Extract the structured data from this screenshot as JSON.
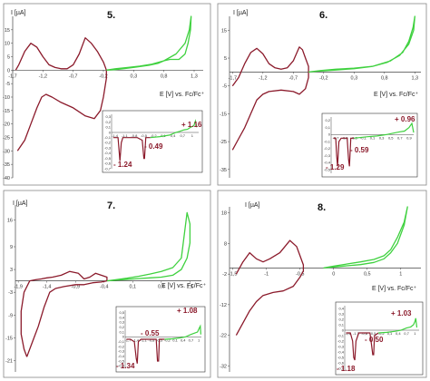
{
  "colors": {
    "red": "#8b1a2b",
    "green": "#3fd13f",
    "axis": "#444444",
    "border": "#888888"
  },
  "chart_data": [
    {
      "type": "line",
      "panel_label": "5.",
      "ylabel": "I [µA]",
      "xlabel": "E [V] vs. Fc/Fc⁺",
      "xlim": [
        -1.7,
        1.45
      ],
      "ylim": [
        -40,
        20
      ],
      "xticks": [
        -1.7,
        -1.2,
        -0.7,
        -0.2,
        0.3,
        0.8,
        1.3
      ],
      "xtick_labels": [
        "-1,7",
        "-1,2",
        "-0,7",
        "-0,2",
        "0,3",
        "0,8",
        "1,3"
      ],
      "yticks": [
        15,
        10,
        5,
        0,
        -5,
        -10,
        -15,
        -20,
        -25,
        -30,
        -35,
        -40
      ],
      "ytick_labels": [
        "15",
        "10",
        "5",
        "0",
        "-5",
        "-10",
        "-15",
        "-20",
        "-25",
        "-30",
        "-35",
        "-40"
      ],
      "series": [
        {
          "color": "red",
          "x": [
            -1.62,
            -1.5,
            -1.4,
            -1.3,
            -1.22,
            -1.15,
            -1.1,
            -1.05,
            -0.9,
            -0.7,
            -0.5,
            -0.35,
            -0.25,
            -0.2,
            -0.15,
            -0.15,
            -0.2,
            -0.3,
            -0.4,
            -0.5,
            -0.6,
            -0.7,
            -0.8,
            -0.9,
            -1.0,
            -1.1,
            -1.2,
            -1.3,
            -1.4,
            -1.5,
            -1.6,
            -1.65
          ],
          "y": [
            -30,
            -26,
            -20,
            -14,
            -10,
            -9,
            -9.5,
            -10,
            -12,
            -14,
            -17,
            -18,
            -15,
            -10,
            -3,
            0,
            3,
            7,
            10,
            12,
            6,
            2,
            0.5,
            0.5,
            1,
            2,
            5,
            8.5,
            10,
            7,
            2,
            0
          ]
        },
        {
          "color": "green",
          "x": [
            -0.15,
            0.0,
            0.2,
            0.4,
            0.6,
            0.8,
            1.0,
            1.15,
            1.22,
            1.25,
            1.24,
            1.2,
            1.15,
            1.05,
            0.9,
            0.8,
            0.7,
            0.55,
            0.35,
            0.15,
            0.0,
            -0.15
          ],
          "y": [
            0,
            0.5,
            1.0,
            1.5,
            2.2,
            3.5,
            6,
            10,
            15,
            20,
            15,
            10,
            6,
            4,
            4,
            3.5,
            2.5,
            1.8,
            1.2,
            0.6,
            0.2,
            0
          ]
        }
      ],
      "inset": {
        "xticks": [
          -1.4,
          -1.1,
          -0.8,
          -0.5,
          -0.2,
          0.1,
          0.4,
          0.7,
          1.0
        ],
        "xtick_labels": [
          "-1,4",
          "-1,1",
          "-0,8",
          "-0,5",
          "-0,2",
          "0,1",
          "0,4",
          "0,7",
          "1"
        ],
        "yticks": [
          0.3,
          0.2,
          0.1,
          0,
          -0.1,
          -0.2,
          -0.3,
          -0.4,
          -0.5,
          -0.6,
          -0.7
        ],
        "ytick_labels": [
          "0,3",
          "0,2",
          "0,1",
          "0",
          "-0,1",
          "-0,2",
          "-0,3",
          "-0,4",
          "-0,5",
          "-0,6",
          "-0,7"
        ],
        "annotations": [
          "+ 1.16",
          "- 0.49",
          "- 1.24"
        ]
      }
    },
    {
      "type": "line",
      "panel_label": "6.",
      "ylabel": "I [µA]",
      "xlabel": "E [V] vs. Fc/Fc⁺",
      "xlim": [
        -1.75,
        1.4
      ],
      "ylim": [
        -38,
        20
      ],
      "xticks": [
        -1.7,
        -1.2,
        -0.7,
        -0.2,
        0.3,
        0.8,
        1.3
      ],
      "xtick_labels": [
        "-1,7",
        "-1,2",
        "-0,7",
        "-0,2",
        "0,3",
        "0,8",
        "1,3"
      ],
      "yticks": [
        15,
        5,
        -5,
        -15,
        -25,
        -35
      ],
      "ytick_labels": [
        "15",
        "5",
        "-5",
        "-15",
        "-25",
        "-35"
      ],
      "series": [
        {
          "color": "red",
          "x": [
            -1.7,
            -1.6,
            -1.5,
            -1.4,
            -1.3,
            -1.2,
            -1.1,
            -0.9,
            -0.7,
            -0.6,
            -0.5,
            -0.45,
            -0.45,
            -0.5,
            -0.55,
            -0.6,
            -0.7,
            -0.8,
            -0.9,
            -1.0,
            -1.1,
            -1.2,
            -1.3,
            -1.4,
            -1.5,
            -1.6,
            -1.7
          ],
          "y": [
            -28,
            -24,
            -20,
            -15,
            -10,
            -8,
            -7,
            -6.5,
            -7,
            -8,
            -6,
            -2,
            2,
            5,
            8,
            9,
            4,
            1.5,
            1,
            1.5,
            3,
            6.5,
            8.5,
            7,
            3,
            -2,
            -5
          ]
        },
        {
          "color": "green",
          "x": [
            -0.45,
            -0.3,
            0.0,
            0.3,
            0.6,
            0.9,
            1.1,
            1.2,
            1.27,
            1.3,
            1.28,
            1.2,
            1.05,
            0.85,
            0.6,
            0.3,
            0.0,
            -0.25,
            -0.45
          ],
          "y": [
            0,
            0.3,
            0.7,
            1.2,
            2,
            4,
            7,
            11,
            16,
            20,
            15,
            10,
            6,
            3.5,
            2,
            1.4,
            1,
            0.5,
            0
          ]
        }
      ],
      "inset": {
        "xticks": [
          -0.7,
          -0.5,
          -0.3,
          -0.1,
          0.1,
          0.3,
          0.5,
          0.7,
          0.9
        ],
        "xtick_labels": [
          "-0,7",
          "-0,5",
          "-0,3",
          "-0,1",
          "0,1",
          "0,3",
          "0,5",
          "0,7",
          "0,9"
        ],
        "yticks": [
          0.2,
          0.1,
          0,
          -0.1,
          -0.2,
          -0.3,
          -0.4,
          -0.5
        ],
        "ytick_labels": [
          "0,2",
          "0,1",
          "0",
          "-0,1",
          "-0,2",
          "-0,3",
          "-0,4",
          "-0,5"
        ],
        "annotations": [
          "+ 0.96",
          "- 0.59",
          "- 1.29"
        ]
      }
    },
    {
      "type": "line",
      "panel_label": "7.",
      "ylabel": "I [µA]",
      "xlabel": "E [V] vs. Fc/Fc⁺",
      "xlim": [
        -1.95,
        1.3
      ],
      "ylim": [
        -24,
        20
      ],
      "xticks": [
        -1.9,
        -1.4,
        -0.9,
        -0.4,
        0.1,
        0.6,
        1.1
      ],
      "xtick_labels": [
        "-1,9",
        "-1,4",
        "-0,9",
        "-0,4",
        "0,1",
        "0,6",
        "1,1"
      ],
      "yticks": [
        16,
        9,
        3,
        -3,
        -9,
        -15,
        -21
      ],
      "ytick_labels": [
        "16",
        "9",
        "3",
        "-3",
        "-9",
        "-15",
        "-21"
      ],
      "series": [
        {
          "color": "red",
          "x": [
            -1.75,
            -1.65,
            -1.55,
            -1.45,
            -1.35,
            -1.25,
            -1.1,
            -0.9,
            -0.75,
            -0.6,
            -0.45,
            -0.35,
            -0.35,
            -0.45,
            -0.55,
            -0.65,
            -0.75,
            -0.85,
            -1.0,
            -1.15,
            -1.3,
            -1.4,
            -1.5,
            -1.6,
            -1.7,
            -1.8,
            -1.85,
            -1.85,
            -1.8,
            -1.75
          ],
          "y": [
            -20,
            -16,
            -12,
            -7,
            -3,
            -2,
            -1.5,
            -1,
            -1,
            -0.5,
            -0.3,
            0,
            1,
            1.5,
            2,
            1,
            0.5,
            2,
            2.5,
            1.5,
            1,
            0.8,
            0.5,
            0.3,
            0,
            -3,
            -8,
            -14,
            -18,
            -20
          ]
        },
        {
          "color": "green",
          "x": [
            -0.35,
            -0.2,
            0.0,
            0.2,
            0.4,
            0.6,
            0.8,
            0.95,
            1.05,
            1.1,
            1.1,
            1.05,
            0.95,
            0.8,
            0.6,
            0.4,
            0.2,
            0.0,
            -0.2,
            -0.35
          ],
          "y": [
            0,
            0.2,
            0.4,
            0.6,
            0.8,
            1,
            1.5,
            3,
            6,
            10,
            15,
            18,
            6,
            3.5,
            2.5,
            1.8,
            1.2,
            0.7,
            0.3,
            0
          ]
        }
      ],
      "inset": {
        "xticks": [
          -1.7,
          -1.4,
          -1.1,
          -0.8,
          -0.5,
          -0.2,
          0.1,
          0.4,
          0.7,
          1.0
        ],
        "xtick_labels": [
          "-1,7",
          "-1,4",
          "-1,1",
          "-0,8",
          "-0,5",
          "-0,2",
          "0,1",
          "0,4",
          "0,7",
          "1"
        ],
        "yticks": [
          0.5,
          0.4,
          0.3,
          0.2,
          0.1,
          0,
          -0.1,
          -0.2,
          -0.3,
          -0.4,
          -0.5,
          -0.6
        ],
        "ytick_labels": [
          "0,5",
          "0,4",
          "0,3",
          "0,2",
          "0,1",
          "0",
          "-0,1",
          "-0,2",
          "-0,3",
          "-0,4",
          "-0,5",
          "-0,6"
        ],
        "annotations": [
          "+ 1.08",
          "- 0.55",
          "- 1.34"
        ]
      }
    },
    {
      "type": "line",
      "panel_label": "8.",
      "ylabel": "I [µA]",
      "xlabel": "E [V] vs. Fc/Fc⁺",
      "xlim": [
        -1.55,
        1.3
      ],
      "ylim": [
        -34,
        20
      ],
      "xticks": [
        -1.5,
        -1.0,
        -0.5,
        0.0,
        0.5,
        1.0
      ],
      "xtick_labels": [
        "-1,5",
        "-1",
        "-0,5",
        "0",
        "0,5",
        "1"
      ],
      "yticks": [
        18,
        8,
        -2,
        -12,
        -22,
        -32
      ],
      "ytick_labels": [
        "18",
        "8",
        "-2",
        "-12",
        "-22",
        "-32"
      ],
      "series": [
        {
          "color": "red",
          "x": [
            -1.45,
            -1.35,
            -1.25,
            -1.15,
            -1.05,
            -0.9,
            -0.75,
            -0.6,
            -0.5,
            -0.45,
            -0.45,
            -0.5,
            -0.55,
            -0.65,
            -0.8,
            -0.95,
            -1.05,
            -1.15,
            -1.25,
            -1.35,
            -1.45
          ],
          "y": [
            -22,
            -18,
            -14,
            -11,
            -9,
            -8,
            -7.5,
            -6,
            -3,
            -1,
            1,
            4,
            7,
            9,
            5,
            3,
            2,
            3,
            5,
            2,
            -2
          ]
        },
        {
          "color": "green",
          "x": [
            -0.15,
            0.0,
            0.2,
            0.4,
            0.6,
            0.75,
            0.85,
            0.95,
            1.05,
            1.1,
            1.05,
            0.95,
            0.85,
            0.75,
            0.6,
            0.4,
            0.2,
            0.0,
            -0.15
          ],
          "y": [
            0,
            0.3,
            0.7,
            1.1,
            1.8,
            3,
            5,
            8,
            14,
            20,
            15,
            10,
            6,
            4,
            2.8,
            2,
            1.3,
            0.6,
            0
          ]
        }
      ],
      "inset": {
        "xticks": [
          -1.4,
          -1.1,
          -0.8,
          -0.5,
          -0.2,
          0.1,
          0.4,
          0.7,
          1.0
        ],
        "xtick_labels": [
          "-1,4",
          "-1,1",
          "-0,8",
          "-0,5",
          "-0,2",
          "0,1",
          "0,4",
          "0,7",
          "1"
        ],
        "yticks": [
          0.4,
          0.3,
          0.2,
          0.1,
          0,
          -0.1,
          -0.2,
          -0.3,
          -0.4,
          -0.5,
          -0.6,
          -0.7
        ],
        "ytick_labels": [
          "0,4",
          "0,3",
          "0,2",
          "0,1",
          "0",
          "-0,1",
          "-0,2",
          "-0,3",
          "-0,4",
          "-0,5",
          "-0,6",
          "-0,7"
        ],
        "annotations": [
          "+ 1.03",
          "- 0.50",
          "- 1.18"
        ]
      }
    }
  ]
}
